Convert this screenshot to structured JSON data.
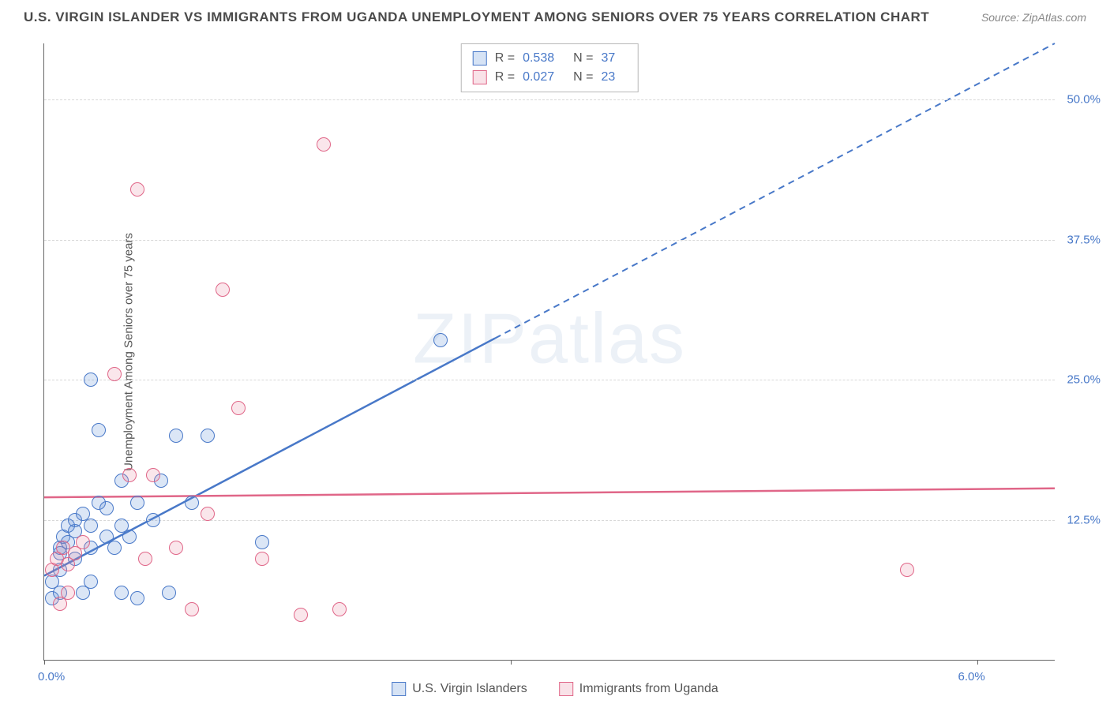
{
  "title": "U.S. VIRGIN ISLANDER VS IMMIGRANTS FROM UGANDA UNEMPLOYMENT AMONG SENIORS OVER 75 YEARS CORRELATION CHART",
  "source": "Source: ZipAtlas.com",
  "watermark_a": "ZIP",
  "watermark_b": "atlas",
  "ylabel": "Unemployment Among Seniors over 75 years",
  "chart": {
    "type": "scatter",
    "xlim": [
      0,
      6.5
    ],
    "ylim": [
      0,
      55
    ],
    "x_ticks": [
      0,
      3,
      6
    ],
    "x_tick_labels": [
      "0.0%",
      "",
      "6.0%"
    ],
    "y_ticks": [
      12.5,
      25.0,
      37.5,
      50.0
    ],
    "y_tick_labels": [
      "12.5%",
      "25.0%",
      "37.5%",
      "50.0%"
    ],
    "background_color": "#ffffff",
    "grid_color": "#d8d8d8",
    "axis_label_color": "#4878c8",
    "point_radius": 9,
    "point_fill_opacity": 0.22,
    "series": [
      {
        "name": "U.S. Virgin Islanders",
        "color": "#5b8fd6",
        "stroke": "#4878c8",
        "r": 0.538,
        "n": 37,
        "trend": {
          "x1": 0,
          "y1": 7.5,
          "x2": 6.5,
          "y2": 55,
          "solid_until_x": 2.9
        },
        "points": [
          [
            0.05,
            5.5
          ],
          [
            0.05,
            7
          ],
          [
            0.1,
            6
          ],
          [
            0.1,
            8
          ],
          [
            0.1,
            9.5
          ],
          [
            0.1,
            10
          ],
          [
            0.12,
            11
          ],
          [
            0.15,
            10.5
          ],
          [
            0.15,
            12
          ],
          [
            0.2,
            9
          ],
          [
            0.2,
            11.5
          ],
          [
            0.2,
            12.5
          ],
          [
            0.25,
            13
          ],
          [
            0.25,
            6
          ],
          [
            0.3,
            7
          ],
          [
            0.3,
            10
          ],
          [
            0.3,
            12
          ],
          [
            0.35,
            20.5
          ],
          [
            0.35,
            14
          ],
          [
            0.4,
            11
          ],
          [
            0.4,
            13.5
          ],
          [
            0.45,
            10
          ],
          [
            0.5,
            12
          ],
          [
            0.5,
            16
          ],
          [
            0.5,
            6
          ],
          [
            0.55,
            11
          ],
          [
            0.6,
            5.5
          ],
          [
            0.6,
            14
          ],
          [
            0.7,
            12.5
          ],
          [
            0.75,
            16
          ],
          [
            0.8,
            6
          ],
          [
            0.85,
            20
          ],
          [
            0.95,
            14
          ],
          [
            1.05,
            20
          ],
          [
            1.4,
            10.5
          ],
          [
            2.55,
            28.5
          ],
          [
            0.3,
            25
          ]
        ]
      },
      {
        "name": "Immigrants from Uganda",
        "color": "#e98ba4",
        "stroke": "#e06688",
        "r": 0.027,
        "n": 23,
        "trend": {
          "x1": 0,
          "y1": 14.5,
          "x2": 6.5,
          "y2": 15.3,
          "solid_until_x": 6.5
        },
        "points": [
          [
            0.05,
            8
          ],
          [
            0.08,
            9
          ],
          [
            0.1,
            5
          ],
          [
            0.12,
            10
          ],
          [
            0.15,
            8.5
          ],
          [
            0.15,
            6
          ],
          [
            0.2,
            9.5
          ],
          [
            0.25,
            10.5
          ],
          [
            0.45,
            25.5
          ],
          [
            0.55,
            16.5
          ],
          [
            0.6,
            42
          ],
          [
            0.65,
            9
          ],
          [
            0.7,
            16.5
          ],
          [
            0.85,
            10
          ],
          [
            0.95,
            4.5
          ],
          [
            1.05,
            13
          ],
          [
            1.15,
            33
          ],
          [
            1.25,
            22.5
          ],
          [
            1.4,
            9
          ],
          [
            1.65,
            4
          ],
          [
            1.8,
            46
          ],
          [
            1.9,
            4.5
          ],
          [
            5.55,
            8
          ]
        ]
      }
    ]
  },
  "legend_top": [
    {
      "swatch": 0,
      "r_label": "R =",
      "r_val": "0.538",
      "n_label": "N =",
      "n_val": "37"
    },
    {
      "swatch": 1,
      "r_label": "R =",
      "r_val": "0.027",
      "n_label": "N =",
      "n_val": "23"
    }
  ],
  "legend_bottom": [
    {
      "swatch": 0,
      "label": "U.S. Virgin Islanders"
    },
    {
      "swatch": 1,
      "label": "Immigrants from Uganda"
    }
  ]
}
